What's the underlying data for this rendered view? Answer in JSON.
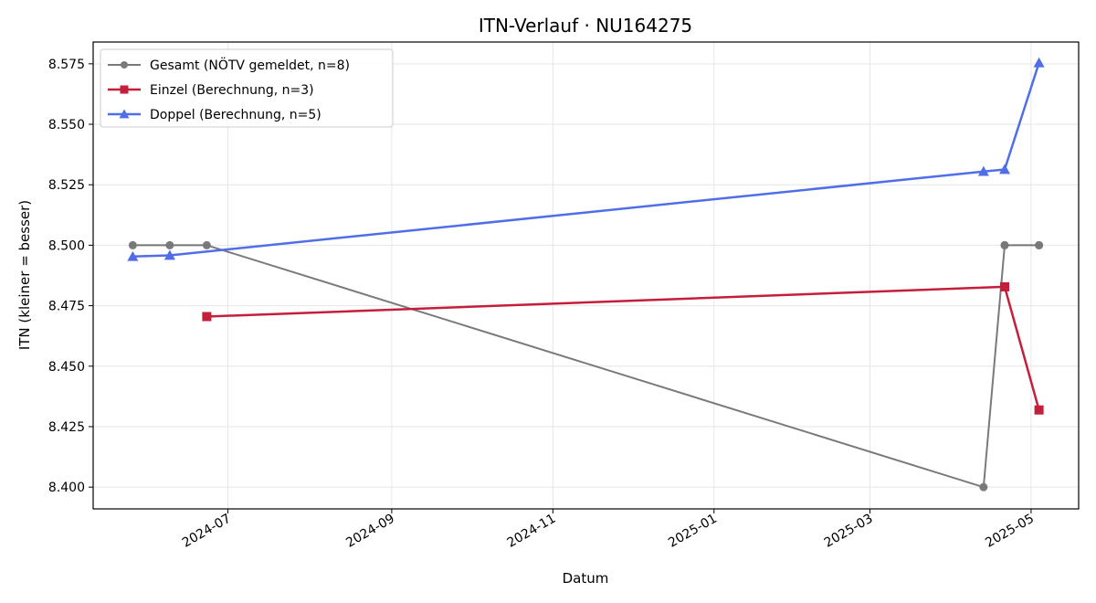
{
  "chart_data": {
    "type": "line",
    "title": "ITN-Verlauf · NU164275",
    "xlabel": "Datum",
    "ylabel": "ITN  (kleiner = besser)",
    "x_is_date": true,
    "xlim": [
      "2024-05-11",
      "2025-05-19"
    ],
    "ylim": [
      8.391,
      8.584
    ],
    "yticks": [
      8.4,
      8.425,
      8.45,
      8.475,
      8.5,
      8.525,
      8.55,
      8.575
    ],
    "ytick_labels": [
      "8.400",
      "8.425",
      "8.450",
      "8.475",
      "8.500",
      "8.525",
      "8.550",
      "8.575"
    ],
    "xticks": [
      "2024-07-01",
      "2024-09-01",
      "2024-11-01",
      "2025-01-01",
      "2025-03-01",
      "2025-05-01"
    ],
    "xtick_labels": [
      "2024-07",
      "2024-09",
      "2024-11",
      "2025-01",
      "2025-03",
      "2025-05"
    ],
    "grid": true,
    "legend_position": "top-left",
    "series": [
      {
        "name": "Gesamt (NÖTV gemeldet, n=8)",
        "color": "#555555",
        "marker": "circle",
        "points": [
          {
            "x": "2024-05-26",
            "y": 8.5
          },
          {
            "x": "2024-06-09",
            "y": 8.5
          },
          {
            "x": "2024-06-23",
            "y": 8.5
          },
          {
            "x": "2025-04-13",
            "y": 8.4
          },
          {
            "x": "2025-04-21",
            "y": 8.5
          },
          {
            "x": "2025-04-21",
            "y": 8.5
          },
          {
            "x": "2025-05-04",
            "y": 8.5
          },
          {
            "x": "2025-05-04",
            "y": 8.5
          }
        ]
      },
      {
        "name": "Einzel (Berechnung, n=3)",
        "color": "#c41e3a",
        "marker": "square",
        "points": [
          {
            "x": "2024-06-23",
            "y": 8.4705
          },
          {
            "x": "2025-04-21",
            "y": 8.4828
          },
          {
            "x": "2025-05-04",
            "y": 8.4319
          }
        ]
      },
      {
        "name": "Doppel (Berechnung, n=5)",
        "color": "#4f6ee8",
        "marker": "triangle",
        "points": [
          {
            "x": "2024-05-26",
            "y": 8.4953
          },
          {
            "x": "2024-06-09",
            "y": 8.4958
          },
          {
            "x": "2025-04-13",
            "y": 8.5305
          },
          {
            "x": "2025-04-21",
            "y": 8.5313
          },
          {
            "x": "2025-05-04",
            "y": 8.5754
          }
        ]
      }
    ]
  }
}
